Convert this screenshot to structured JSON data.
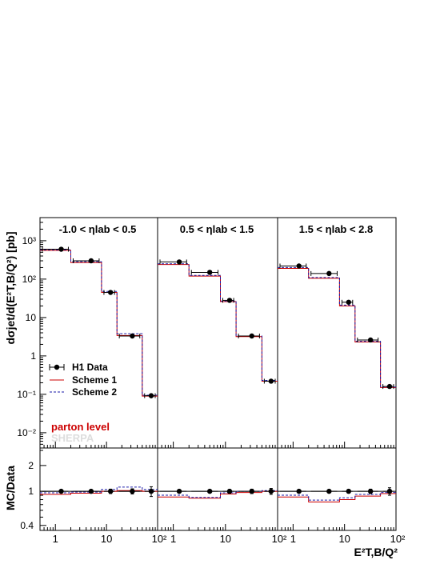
{
  "figure": {
    "ylabel_main": "dσjet/d(E²T,B/Q²) [pb]",
    "ylabel_ratio": "MC/Data",
    "xlabel": "E²T,B/Q²"
  },
  "legend": {
    "data_label": "H1 Data",
    "scheme1_label": "Scheme 1",
    "scheme2_label": "Scheme 2",
    "level_label": "parton level",
    "generator_label": "SHERPA"
  },
  "colors": {
    "data": "#000000",
    "scheme1": "#cc0000",
    "scheme2": "#1a1aa8",
    "level_text": "#cc0000",
    "generator_text": "#dddddd"
  },
  "axes": {
    "xlim": [
      0.5,
      100
    ],
    "ylim_main": [
      0.004,
      4000
    ],
    "ylim_ratio": [
      0.35,
      3.2
    ],
    "x_scale": "log",
    "y_scale_main": "log",
    "y_scale_ratio": "log",
    "xtick_values": [
      1,
      10,
      100
    ],
    "xtick_labels": [
      "1",
      "10",
      "10²"
    ],
    "ytick_values_main": [
      0.01,
      0.1,
      1,
      10,
      100,
      1000
    ],
    "ytick_labels_main": [
      "10⁻²",
      "10⁻¹",
      "1",
      "10",
      "10²",
      "10³"
    ],
    "ytick_values_ratio": [
      0.4,
      1,
      2
    ],
    "ytick_labels_ratio": [
      "0.4",
      "1",
      "2"
    ]
  },
  "chart_data": {
    "type": "scatter",
    "bin_edges": [
      0.5,
      2,
      8,
      16,
      50,
      100
    ],
    "panels": [
      {
        "title": "-1.0 < ηlab < 0.5",
        "data": {
          "x": [
            1.3,
            5,
            12,
            32,
            75
          ],
          "y": [
            600,
            300,
            45,
            3.3,
            0.092
          ],
          "yerr_rel": [
            0.05,
            0.05,
            0.06,
            0.07,
            0.15
          ],
          "ratio_err": [
            0.04,
            0.04,
            0.06,
            0.07,
            0.13
          ]
        },
        "scheme1": {
          "values": [
            560,
            270,
            45,
            3.4,
            0.09
          ]
        },
        "scheme2": {
          "values": [
            580,
            285,
            48,
            3.8,
            0.095
          ]
        },
        "ratio_scheme1": [
          0.92,
          0.95,
          1.0,
          1.02,
          1.0
        ],
        "ratio_scheme2": [
          0.96,
          0.98,
          1.05,
          1.12,
          1.05
        ]
      },
      {
        "title": "0.5 < ηlab < 1.5",
        "data": {
          "x": [
            1.3,
            5,
            12,
            32,
            75
          ],
          "y": [
            280,
            150,
            28,
            3.3,
            0.22
          ],
          "yerr_rel": [
            0.05,
            0.05,
            0.06,
            0.07,
            0.1
          ],
          "ratio_err": [
            0.04,
            0.04,
            0.05,
            0.06,
            0.08
          ]
        },
        "scheme1": {
          "values": [
            240,
            120,
            26,
            3.2,
            0.22
          ]
        },
        "scheme2": {
          "values": [
            250,
            125,
            27,
            3.3,
            0.23
          ]
        },
        "ratio_scheme1": [
          0.86,
          0.83,
          0.93,
          0.97,
          1.0
        ],
        "ratio_scheme2": [
          0.9,
          0.85,
          0.96,
          1.0,
          1.02
        ]
      },
      {
        "title": "1.5 < ηlab < 2.8",
        "data": {
          "x": [
            1.3,
            5,
            12,
            32,
            75
          ],
          "y": [
            220,
            140,
            25,
            2.6,
            0.16
          ],
          "yerr_rel": [
            0.05,
            0.05,
            0.06,
            0.07,
            0.12
          ],
          "ratio_err": [
            0.04,
            0.04,
            0.05,
            0.06,
            0.1
          ]
        },
        "scheme1": {
          "values": [
            190,
            105,
            20,
            2.3,
            0.15
          ]
        },
        "scheme2": {
          "values": [
            200,
            110,
            21,
            2.4,
            0.155
          ]
        },
        "ratio_scheme1": [
          0.86,
          0.75,
          0.8,
          0.88,
          0.94
        ],
        "ratio_scheme2": [
          0.9,
          0.79,
          0.84,
          0.92,
          0.97
        ]
      }
    ]
  }
}
